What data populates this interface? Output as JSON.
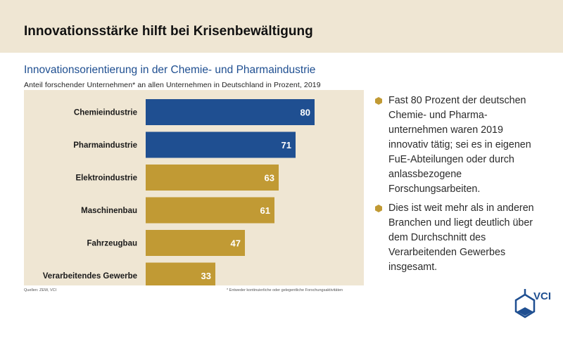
{
  "header": {
    "title": "Innovationsstärke hilft bei Krisenbewältigung"
  },
  "chart_data": {
    "type": "bar",
    "orientation": "horizontal",
    "title": "Innovationsorientierung in der Chemie- und Pharmaindustrie",
    "subtitle": "Anteil forschender Unternehmen*  an allen Unternehmen  in Deutschland  in Prozent, 2019",
    "categories": [
      "Chemieindustrie",
      "Pharmaindustrie",
      "Elektroindustrie",
      "Maschinenbau",
      "Fahrzeugbau",
      "Verarbeitendes Gewerbe"
    ],
    "values": [
      80,
      71,
      63,
      61,
      47,
      33
    ],
    "xlim": [
      0,
      100
    ],
    "grid": false,
    "colors": {
      "highlight": "#1f4f91",
      "other": "#c19a34",
      "panel": "#efe6d3",
      "value_label": "#ffffff"
    },
    "highlight_count": 2,
    "source": "Quellen: ZEW, VCI",
    "footnote": "* Entweder kontinuierliche oder gelegentliche Forschungsaktivitäten"
  },
  "bullets": [
    "Fast 80 Prozent der deutschen Chemie- und Pharma-unternehmen waren 2019 innovativ tätig; sei es in eigenen FuE-Abteilungen oder durch anlassbezogene Forschungsarbeiten.",
    "Dies ist weit mehr als in anderen Branchen und liegt deutlich über dem Durchschnitt des Verarbeitenden Gewerbes insgesamt."
  ],
  "bullet_icon": "hexagon-icon",
  "logo": {
    "text": "VCI",
    "icon": "benzene-hexagon-icon",
    "color": "#1f4f91"
  }
}
